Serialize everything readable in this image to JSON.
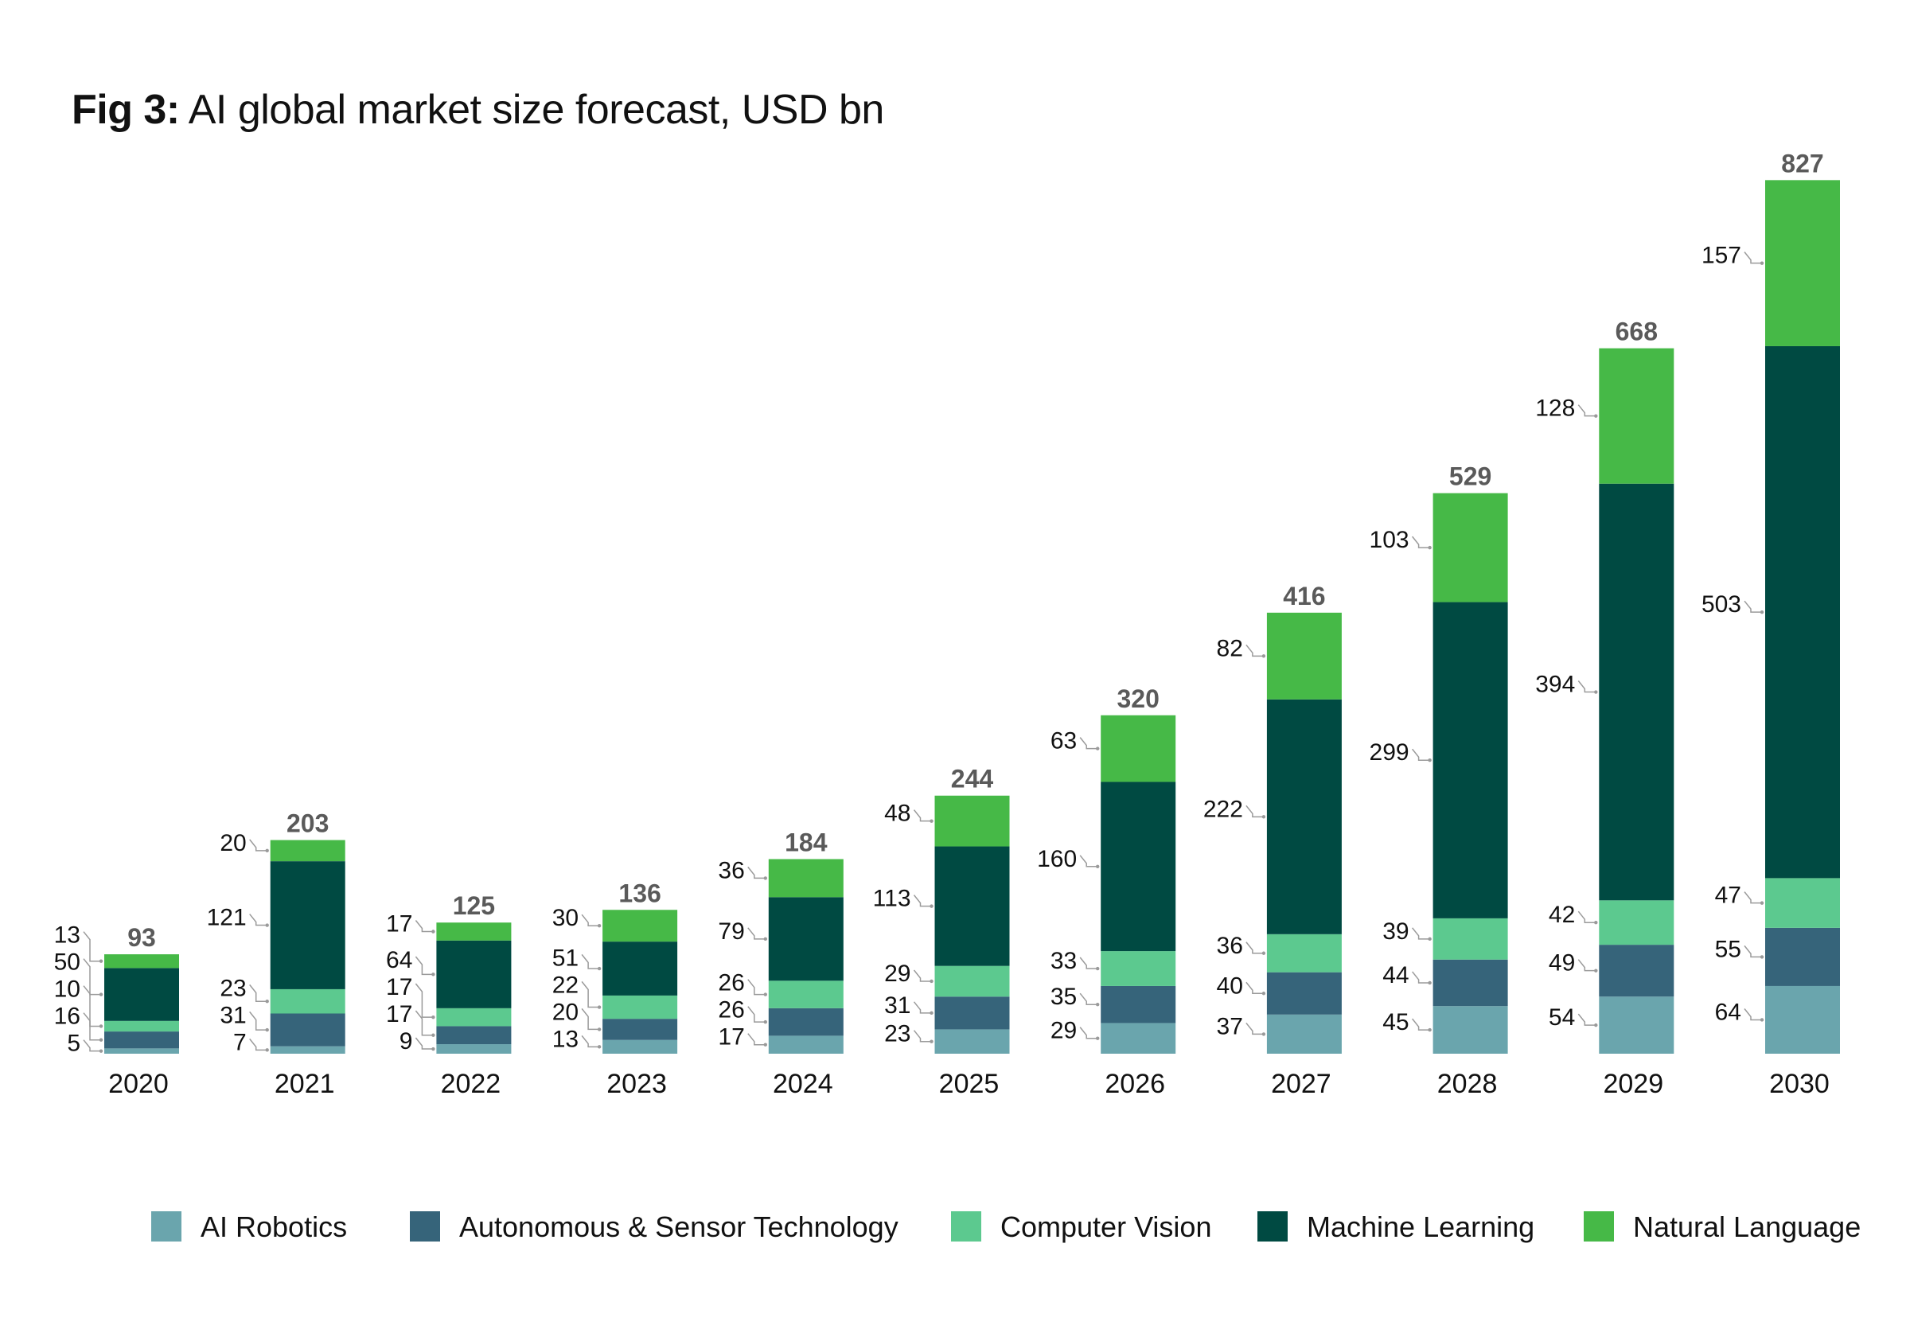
{
  "title": {
    "fig_label": "Fig 3:",
    "text": "AI global market size forecast, USD bn"
  },
  "chart_data": {
    "type": "bar",
    "stacked": true,
    "title": "Fig 3: AI global market size forecast, USD bn",
    "categories": [
      "2020",
      "2021",
      "2022",
      "2023",
      "2024",
      "2025",
      "2026",
      "2027",
      "2028",
      "2029",
      "2030"
    ],
    "series": [
      {
        "name": "AI Robotics",
        "color": "#6aa5ad",
        "values": [
          5,
          7,
          9,
          13,
          17,
          23,
          29,
          37,
          45,
          54,
          64
        ]
      },
      {
        "name": "Autonomous & Sensor Technology",
        "color": "#36647a",
        "values": [
          16,
          31,
          17,
          20,
          26,
          31,
          35,
          40,
          44,
          49,
          55
        ]
      },
      {
        "name": "Computer Vision",
        "color": "#5cc98f",
        "values": [
          10,
          23,
          17,
          22,
          26,
          29,
          33,
          36,
          39,
          42,
          47
        ]
      },
      {
        "name": "Machine Learning",
        "color": "#004a42",
        "values": [
          50,
          121,
          64,
          51,
          79,
          113,
          160,
          222,
          299,
          394,
          503
        ]
      },
      {
        "name": "Natural Language",
        "color": "#46b947",
        "values": [
          13,
          20,
          17,
          30,
          36,
          48,
          63,
          82,
          103,
          128,
          157
        ]
      }
    ],
    "totals": [
      93,
      203,
      125,
      136,
      184,
      244,
      320,
      416,
      529,
      668,
      827
    ],
    "ylim": [
      0,
      827
    ],
    "grid": false,
    "legend_position": "bottom"
  }
}
